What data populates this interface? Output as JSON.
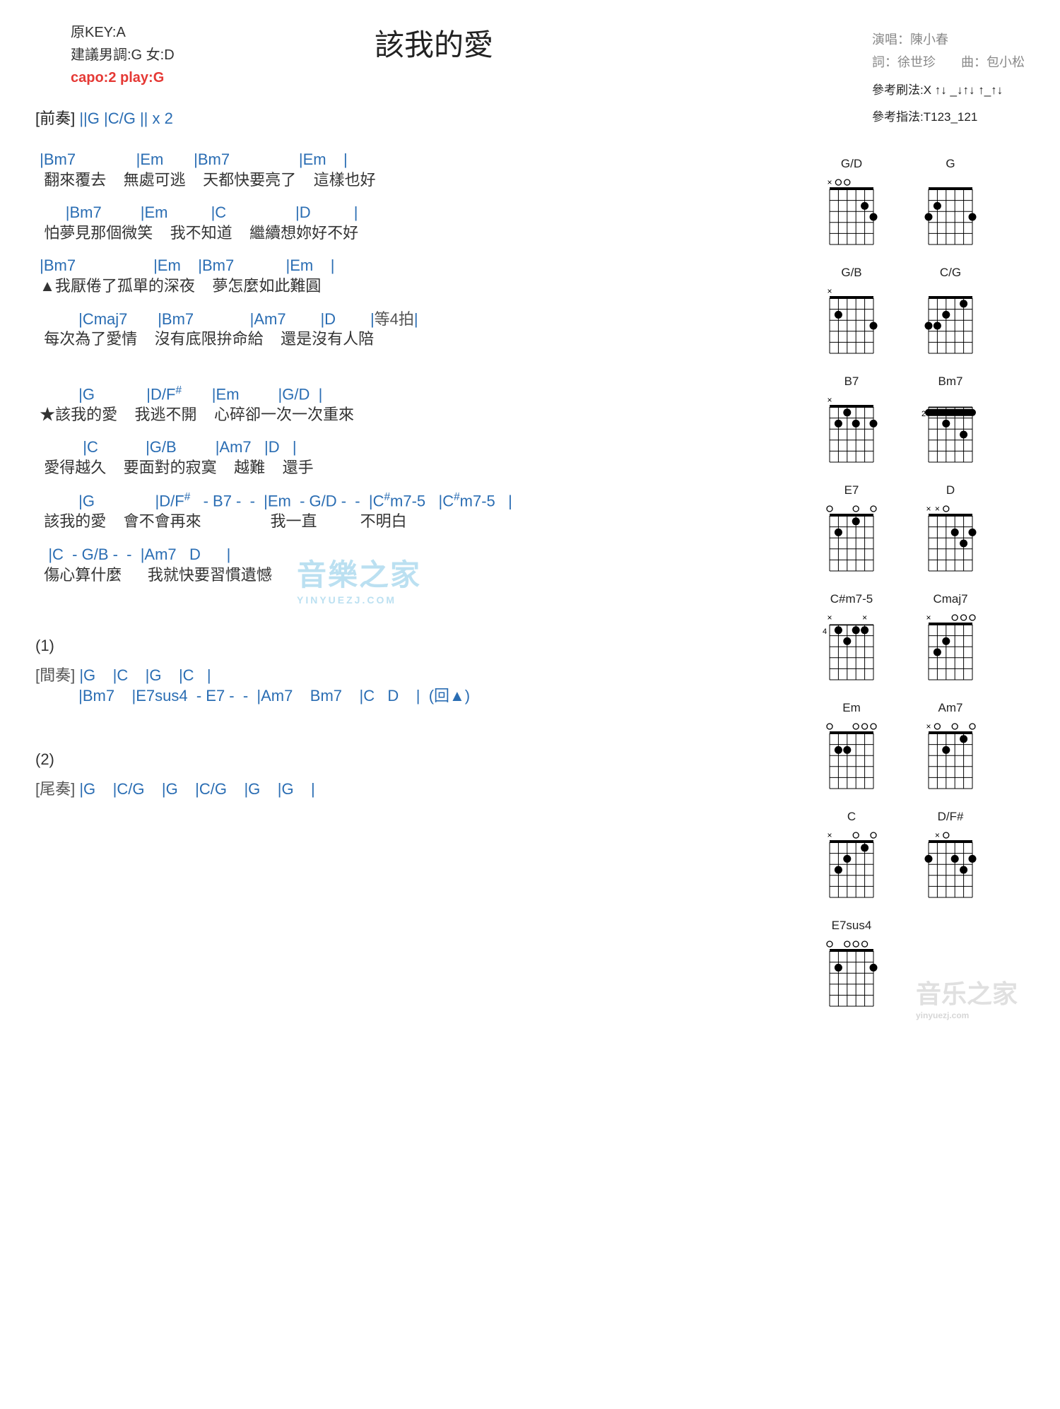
{
  "colors": {
    "chord": "#2a6db3",
    "text": "#333333",
    "meta": "#888888",
    "capo": "#e53935",
    "bg": "#ffffff",
    "watermark": "#3fa9d8"
  },
  "header": {
    "key_line": "原KEY:A",
    "suggest_line": "建議男調:G 女:D",
    "capo_line": "capo:2 play:G",
    "title": "該我的愛",
    "singer_label": "演唱：",
    "singer": "陳小春",
    "lyricist_label": "詞：",
    "lyricist": "徐世珍",
    "composer_label": "曲：",
    "composer": "包小松",
    "strum_label": "參考刷法:",
    "strum": "X ↑↓ _↓↑↓ ↑_↑↓",
    "pick_label": "參考指法:",
    "pick": "T123_121"
  },
  "intro": {
    "label": "[前奏]",
    "chords": " ||G    |C/G   || x 2"
  },
  "lines": [
    {
      "c": " |Bm7              |Em       |Bm7                |Em    |",
      "l": "  翻來覆去    無處可逃    天都快要亮了    這樣也好"
    },
    {
      "c": "       |Bm7         |Em          |C                |D          |",
      "l": "  怕夢見那個微笑    我不知道    繼續想妳好不好"
    },
    {
      "c": " |Bm7                  |Em    |Bm7            |Em    |",
      "l": " ▲我厭倦了孤單的深夜    夢怎麼如此難圓"
    },
    {
      "c": "          |Cmaj7       |Bm7             |Am7        |D        |等4拍|",
      "l": "  每次為了愛情    沒有底限拚命給    還是沒有人陪"
    }
  ],
  "chorus": [
    {
      "c": "          |G            |D/F#       |Em         |G/D  |",
      "l": " ★該我的愛    我逃不開    心碎卻一次一次重來"
    },
    {
      "c": "           |C           |G/B         |Am7   |D   |",
      "l": "  愛得越久    要面對的寂寞    越難    還手"
    },
    {
      "c": "          |G              |D/F#   - B7 -  -  |Em  - G/D -  -  |C#m7-5   |C#m7-5   |",
      "l": "  該我的愛    會不會再來                我一直          不明白"
    },
    {
      "c": "   |C  - G/B -  -  |Am7   D      |",
      "l": "  傷心算什麼      我就快要習慣遺憾"
    }
  ],
  "marker1": "(1)",
  "interlude": {
    "label": "[間奏]",
    "line1": " |G    |C    |G    |C   |",
    "line2": "          |Bm7    |E7sus4  - E7 -  -  |Am7    Bm7    |C   D    |  (回▲)"
  },
  "marker2": "(2)",
  "outro": {
    "label": "[尾奏]",
    "chords": " |G    |C/G    |G    |C/G    |G    |G    |"
  },
  "chord_diagrams": [
    {
      "name": "G/D",
      "markers": "xoo   ",
      "fret": 0,
      "dots": [
        [
          3,
          6
        ],
        [
          2,
          5
        ]
      ],
      "open": [
        2,
        3,
        4
      ]
    },
    {
      "name": "G",
      "markers": "      ",
      "fret": 0,
      "dots": [
        [
          3,
          1
        ],
        [
          2,
          2
        ],
        [
          3,
          6
        ]
      ],
      "open": [
        3,
        4,
        5
      ]
    },
    {
      "name": "G/B",
      "markers": "x     ",
      "fret": 0,
      "dots": [
        [
          2,
          2
        ],
        [
          3,
          6
        ]
      ],
      "open": [
        3,
        4,
        5
      ]
    },
    {
      "name": "C/G",
      "markers": "      ",
      "fret": 0,
      "dots": [
        [
          3,
          1
        ],
        [
          3,
          2
        ],
        [
          2,
          3
        ],
        [
          1,
          5
        ]
      ],
      "open": [
        4,
        6
      ]
    },
    {
      "name": "B7",
      "markers": "x     ",
      "fret": 0,
      "dots": [
        [
          2,
          2
        ],
        [
          1,
          3
        ],
        [
          2,
          4
        ],
        [
          2,
          6
        ]
      ],
      "open": [
        5
      ]
    },
    {
      "name": "Bm7",
      "markers": "      ",
      "fret": 2,
      "barre": {
        "fret": 1,
        "from": 1,
        "to": 6
      },
      "dots": [
        [
          2,
          3
        ],
        [
          3,
          5
        ]
      ]
    },
    {
      "name": "E7",
      "markers": "o  o o",
      "fret": 0,
      "dots": [
        [
          2,
          2
        ],
        [
          1,
          4
        ]
      ],
      "open": [
        1,
        3,
        5,
        6
      ]
    },
    {
      "name": "D",
      "markers": "xxo   ",
      "fret": 0,
      "dots": [
        [
          2,
          4
        ],
        [
          3,
          5
        ],
        [
          2,
          6
        ]
      ],
      "open": [
        3
      ]
    },
    {
      "name": "C#m7-5",
      "markers": "x   x ",
      "fret": 4,
      "dots": [
        [
          1,
          2
        ],
        [
          2,
          3
        ],
        [
          1,
          4
        ],
        [
          1,
          5
        ]
      ]
    },
    {
      "name": "Cmaj7",
      "markers": "x  ooo",
      "fret": 0,
      "dots": [
        [
          3,
          2
        ],
        [
          2,
          3
        ]
      ],
      "open": [
        4,
        5,
        6
      ]
    },
    {
      "name": "Em",
      "markers": "o  ooo",
      "fret": 0,
      "dots": [
        [
          2,
          2
        ],
        [
          2,
          3
        ]
      ],
      "open": [
        1,
        4,
        5,
        6
      ]
    },
    {
      "name": "Am7",
      "markers": "xo o o",
      "fret": 0,
      "dots": [
        [
          2,
          3
        ],
        [
          1,
          5
        ]
      ],
      "open": [
        2,
        4,
        6
      ]
    },
    {
      "name": "C",
      "markers": "x  o o",
      "fret": 0,
      "dots": [
        [
          3,
          2
        ],
        [
          2,
          3
        ],
        [
          1,
          5
        ]
      ],
      "open": [
        4,
        6
      ]
    },
    {
      "name": "D/F#",
      "markers": " xo   ",
      "fret": 0,
      "dots": [
        [
          2,
          1
        ],
        [
          2,
          4
        ],
        [
          3,
          5
        ],
        [
          2,
          6
        ]
      ],
      "open": [
        3
      ]
    },
    {
      "name": "E7sus4",
      "markers": "o ooo ",
      "fret": 0,
      "dots": [
        [
          2,
          2
        ],
        [
          2,
          6
        ]
      ],
      "open": [
        1,
        3,
        4,
        5
      ]
    }
  ],
  "watermark": {
    "text": "音樂之家",
    "sub": "YINYUEZJ.COM"
  },
  "watermark2": {
    "text": "音乐之家",
    "sub": "yinyuezj.com"
  }
}
